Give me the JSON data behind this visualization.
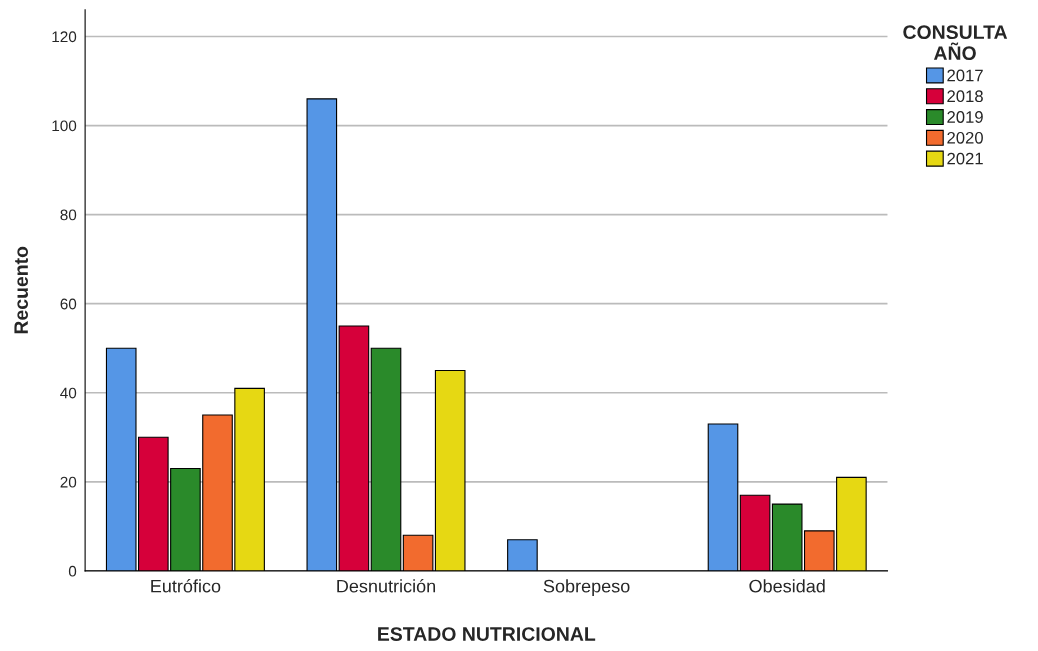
{
  "chart_data": {
    "type": "bar",
    "xlabel": "ESTADO NUTRICIONAL",
    "ylabel": "Recuento",
    "legend_title": "CONSULTA\nAÑO",
    "categories": [
      "Eutrófico",
      "Desnutrición",
      "Sobrepeso",
      "Obesidad"
    ],
    "series": [
      {
        "name": "2017",
        "color": "#5596e6",
        "values": [
          50,
          106,
          7,
          33
        ]
      },
      {
        "name": "2018",
        "color": "#d6003a",
        "values": [
          30,
          55,
          null,
          17
        ]
      },
      {
        "name": "2019",
        "color": "#2a8a2a",
        "values": [
          23,
          50,
          null,
          15
        ]
      },
      {
        "name": "2020",
        "color": "#f26b2e",
        "values": [
          35,
          8,
          null,
          9
        ]
      },
      {
        "name": "2021",
        "color": "#e6d813",
        "values": [
          41,
          45,
          null,
          21
        ]
      }
    ],
    "ylim": [
      0,
      126
    ],
    "yticks": [
      0,
      20,
      40,
      60,
      80,
      100,
      120
    ],
    "grid": "y",
    "legend": "top right"
  }
}
